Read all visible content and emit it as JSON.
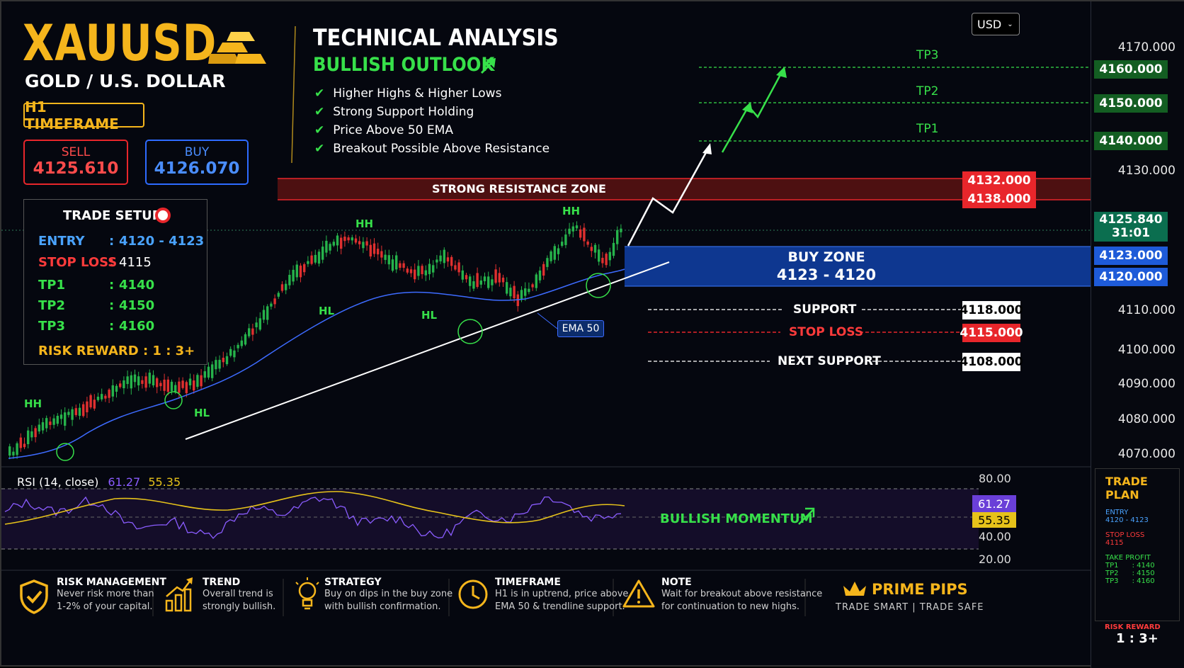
{
  "header": {
    "symbol": "XAUUSD",
    "pair_name": "GOLD / U.S. DOLLAR",
    "timeframe": "H1 TIMEFRAME"
  },
  "quotes": {
    "sell_label": "SELL",
    "sell_price": "4125.610",
    "buy_label": "BUY",
    "buy_price": "4126.070"
  },
  "analysis": {
    "title": "TECHNICAL ANALYSIS",
    "outlook": "BULLISH OUTLOOK",
    "points": [
      "Higher Highs & Higher Lows",
      "Strong Support Holding",
      "Price Above 50 EMA",
      "Breakout Possible Above Resistance"
    ]
  },
  "trade_setup": {
    "title": "TRADE SETUP",
    "rows": [
      {
        "label": "ENTRY",
        "sep": ":",
        "value": "4120 - 4123",
        "color": "#4aa3ff"
      },
      {
        "label": "STOP LOSS",
        "sep": ":",
        "value": "4115",
        "color": "#ff3b3b"
      },
      {
        "label": "TP1",
        "sep": ":",
        "value": "4140",
        "color": "#37e04a"
      },
      {
        "label": "TP2",
        "sep": ":",
        "value": "4150",
        "color": "#37e04a"
      },
      {
        "label": "TP3",
        "sep": ":",
        "value": "4160",
        "color": "#37e04a"
      }
    ],
    "risk_reward": "RISK REWARD : 1 : 3+"
  },
  "currency_select": {
    "value": "USD"
  },
  "price_axis": {
    "ticks": [
      "4170.000",
      "4130.000",
      "4110.000",
      "4100.000",
      "4090.000",
      "4080.000",
      "4070.000"
    ],
    "tags": {
      "tp3": "4160.000",
      "tp2": "4150.000",
      "tp1": "4140.000",
      "res_top": "4132.000",
      "res_bot": "4138.000",
      "current": "4125.840",
      "countdown": "31:01",
      "buy_top": "4123.000",
      "buy_bot": "4120.000",
      "support": "4118.000",
      "stop": "4115.000",
      "next_support": "4108.000"
    }
  },
  "levels": {
    "tp3": "TP3",
    "tp2": "TP2",
    "tp1": "TP1",
    "resistance": "STRONG RESISTANCE ZONE",
    "buy_zone_title": "BUY ZONE",
    "buy_zone_range": "4123 - 4120",
    "support": "SUPPORT",
    "stop_loss": "STOP LOSS",
    "next_support": "NEXT SUPPORT",
    "ema": "EMA 50"
  },
  "swing_labels": {
    "hh": "HH",
    "hl": "HL"
  },
  "rsi": {
    "title": "RSI (14, close)",
    "value1": "61.27",
    "value2": "55.35",
    "levels": [
      "80.00",
      "40.00",
      "20.00"
    ],
    "momentum": "BULLISH MOMENTUM"
  },
  "trade_plan": {
    "title": "TRADE PLAN",
    "entry_label": "ENTRY",
    "entry": "4120 - 4123",
    "sl_label": "STOP LOSS",
    "sl": "4115",
    "tp_label": "TAKE PROFIT",
    "tps": [
      "TP1      : 4140",
      "TP2      : 4150",
      "TP3      : 4160"
    ],
    "rr_label": "RISK REWARD",
    "rr": "1 : 3+"
  },
  "footer": [
    {
      "title": "RISK MANAGEMENT",
      "desc": [
        "Never risk more than",
        "1-2% of your capital."
      ],
      "icon": "shield-icon"
    },
    {
      "title": "TREND",
      "desc": [
        "Overall trend is",
        "strongly bullish."
      ],
      "icon": "trend-bars-icon"
    },
    {
      "title": "STRATEGY",
      "desc": [
        "Buy on dips in the buy zone",
        "with bullish confirmation."
      ],
      "icon": "lightbulb-icon"
    },
    {
      "title": "TIMEFRAME",
      "desc": [
        "H1 is in uptrend, price above",
        "EMA 50 & trendline support."
      ],
      "icon": "clock-icon"
    },
    {
      "title": "NOTE",
      "desc": [
        "Wait for breakout above resistance",
        "for continuation to new highs."
      ],
      "icon": "warning-icon"
    }
  ],
  "brand": {
    "name": "PRIME PIPS",
    "tagline": "TRADE SMART | TRADE SAFE"
  },
  "colors": {
    "gold": "#f5b51c",
    "green": "#37e04a",
    "red": "#e8262b",
    "blue": "#1e5bd8",
    "purple": "#8a5cff",
    "yellow": "#e6c21a"
  },
  "chart_data": {
    "type": "candlestick",
    "title": "XAUUSD H1",
    "trend": "bullish",
    "ema": "EMA 50",
    "levels": {
      "tp1": 4140,
      "tp2": 4150,
      "tp3": 4160,
      "resistance": [
        4132,
        4138
      ],
      "buy_zone": [
        4120,
        4123
      ],
      "support": 4118,
      "stop_loss": 4115,
      "next_support": 4108
    },
    "rsi": [
      61.27,
      55.35
    ]
  }
}
